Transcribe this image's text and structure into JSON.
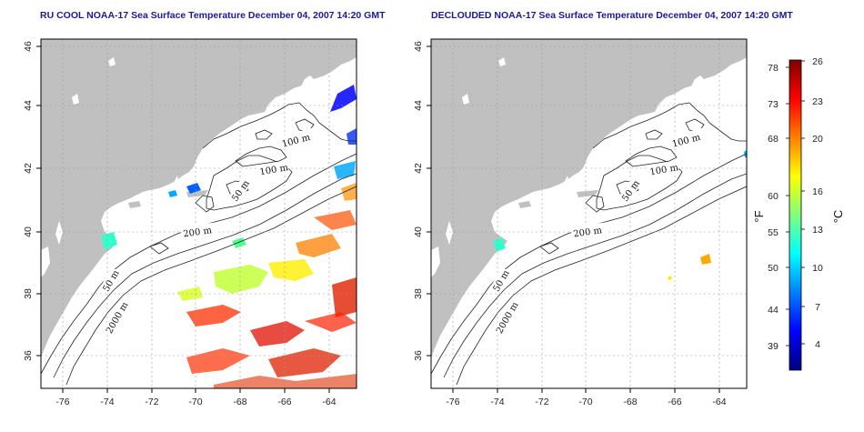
{
  "panels": [
    {
      "title": "RU COOL NOAA-17 Sea Surface Temperature December 04, 2007 14:20 GMT"
    },
    {
      "title": "DECLOUDED NOAA-17 Sea Surface Temperature December 04, 2007 14:20 GMT"
    }
  ],
  "axes": {
    "lon_ticks": [
      "-76",
      "-74",
      "-72",
      "-70",
      "-68",
      "-66",
      "-64"
    ],
    "lat_ticks": [
      "36",
      "38",
      "40",
      "42",
      "44",
      "46"
    ]
  },
  "contour_labels": [
    "100 m",
    "100 m",
    "50 m",
    "200 m",
    "50 m",
    "2000 m"
  ],
  "colorbar": {
    "fahrenheit_unit": "°F",
    "celsius_unit": "°C",
    "fahrenheit_ticks": [
      "78",
      "73",
      "68",
      "60",
      "55",
      "50",
      "44",
      "39"
    ],
    "celsius_ticks": [
      "26",
      "23",
      "20",
      "16",
      "13",
      "10",
      "7",
      "4"
    ]
  },
  "colors": {
    "land": "#c0c0c0",
    "title": "#1a1a99",
    "colormap": [
      "#00007f",
      "#0000ff",
      "#007fff",
      "#00ffff",
      "#7fff7f",
      "#ffff00",
      "#ff7f00",
      "#ff0000",
      "#7f0000"
    ]
  }
}
